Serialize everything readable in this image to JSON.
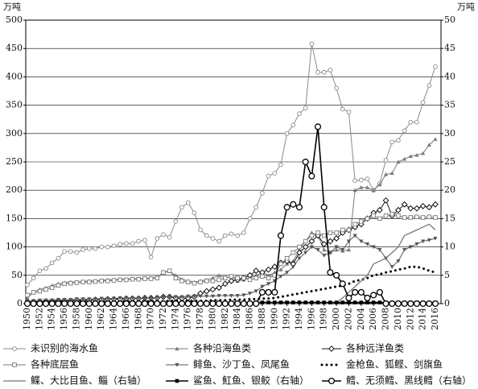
{
  "chart_data": {
    "type": "line",
    "y_unit": "万吨",
    "y2_unit": "万吨",
    "x": [
      1950,
      1951,
      1952,
      1953,
      1954,
      1955,
      1956,
      1957,
      1958,
      1959,
      1960,
      1961,
      1962,
      1963,
      1964,
      1965,
      1966,
      1967,
      1968,
      1969,
      1970,
      1971,
      1972,
      1973,
      1974,
      1975,
      1976,
      1977,
      1978,
      1979,
      1980,
      1981,
      1982,
      1983,
      1984,
      1985,
      1986,
      1987,
      1988,
      1989,
      1990,
      1991,
      1992,
      1993,
      1994,
      1995,
      1996,
      1997,
      1998,
      1999,
      2000,
      2001,
      2002,
      2003,
      2004,
      2005,
      2006,
      2007,
      2008,
      2009,
      2010,
      2011,
      2012,
      2013,
      2014,
      2015,
      2016
    ],
    "xlim": [
      1950,
      2016
    ],
    "xticks": [
      1950,
      1952,
      1954,
      1956,
      1958,
      1960,
      1962,
      1964,
      1966,
      1968,
      1970,
      1972,
      1974,
      1976,
      1978,
      1980,
      1982,
      1984,
      1986,
      1988,
      1990,
      1992,
      1994,
      1996,
      1998,
      2000,
      2002,
      2004,
      2006,
      2008,
      2010,
      2012,
      2014,
      2016
    ],
    "ylim": [
      0,
      500
    ],
    "yticks": [
      0,
      50,
      100,
      150,
      200,
      250,
      300,
      350,
      400,
      450,
      500
    ],
    "y2lim": [
      0,
      50
    ],
    "y2ticks": [
      0,
      5,
      10,
      15,
      20,
      25,
      30,
      35,
      40,
      45,
      50
    ],
    "grid": true,
    "series": [
      {
        "name": "未识别的海水鱼",
        "color": "#8a8a8a",
        "marker": "circle",
        "values": [
          33,
          45,
          58,
          62,
          72,
          80,
          92,
          92,
          90,
          95,
          97,
          97,
          100,
          100,
          102,
          105,
          106,
          106,
          110,
          112,
          82,
          115,
          122,
          117,
          145,
          170,
          178,
          160,
          130,
          120,
          115,
          110,
          120,
          123,
          120,
          125,
          150,
          170,
          195,
          225,
          230,
          245,
          300,
          315,
          335,
          345,
          458,
          408,
          408,
          412,
          380,
          343,
          338,
          217,
          218,
          220,
          200,
          212,
          253,
          285,
          288,
          305,
          320,
          320,
          355,
          385,
          418
        ]
      },
      {
        "name": "各种沿海鱼类",
        "color": "#7a7a7a",
        "marker": "triangle",
        "values": [
          10,
          20,
          25,
          28,
          32,
          35,
          37,
          38,
          38,
          39,
          40,
          40,
          41,
          42,
          42,
          43,
          43,
          44,
          44,
          45,
          45,
          47,
          55,
          57,
          50,
          43,
          40,
          38,
          40,
          42,
          45,
          50,
          45,
          48,
          40,
          42,
          45,
          50,
          55,
          50,
          55,
          60,
          70,
          75,
          95,
          110,
          125,
          120,
          95,
          90,
          95,
          93,
          95,
          200,
          205,
          205,
          200,
          210,
          228,
          230,
          250,
          255,
          260,
          262,
          265,
          280,
          290
        ]
      },
      {
        "name": "各种远洋鱼类",
        "color": "#111111",
        "marker": "diamond",
        "values": [
          2,
          3,
          3,
          4,
          4,
          5,
          5,
          5,
          6,
          6,
          6,
          7,
          7,
          8,
          8,
          8,
          9,
          9,
          9,
          10,
          10,
          10,
          12,
          12,
          10,
          9,
          10,
          12,
          18,
          22,
          25,
          28,
          35,
          40,
          42,
          45,
          50,
          58,
          55,
          60,
          65,
          72,
          75,
          70,
          90,
          100,
          110,
          120,
          105,
          110,
          115,
          125,
          130,
          135,
          140,
          150,
          160,
          165,
          182,
          155,
          165,
          175,
          168,
          168,
          172,
          170,
          175
        ]
      },
      {
        "name": "各种底层鱼",
        "color": "#777777",
        "marker": "square",
        "values": [
          15,
          20,
          22,
          25,
          28,
          32,
          35,
          36,
          37,
          38,
          38,
          39,
          40,
          40,
          41,
          42,
          42,
          43,
          43,
          44,
          44,
          45,
          55,
          58,
          45,
          40,
          38,
          36,
          38,
          40,
          40,
          42,
          45,
          48,
          45,
          45,
          42,
          45,
          48,
          45,
          50,
          70,
          80,
          90,
          100,
          110,
          120,
          125,
          120,
          125,
          125,
          130,
          130,
          140,
          145,
          150,
          155,
          150,
          155,
          158,
          155,
          152,
          152,
          153,
          152,
          153,
          152
        ]
      },
      {
        "name": "鲱鱼、沙丁鱼、凤尾鱼",
        "color": "#555555",
        "marker": "tridown",
        "values": [
          5,
          5,
          6,
          6,
          6,
          7,
          7,
          7,
          8,
          8,
          8,
          8,
          9,
          9,
          9,
          10,
          10,
          10,
          10,
          10,
          10,
          11,
          12,
          12,
          12,
          12,
          13,
          13,
          13,
          13,
          13,
          14,
          14,
          14,
          14,
          15,
          18,
          22,
          30,
          35,
          40,
          48,
          55,
          65,
          80,
          90,
          100,
          95,
          85,
          90,
          100,
          95,
          110,
          120,
          110,
          105,
          100,
          95,
          80,
          65,
          75,
          95,
          100,
          105,
          110,
          112,
          115
        ]
      },
      {
        "name": "金枪鱼、狐鲣、剑旗鱼",
        "color": "#000000",
        "marker": "dot",
        "values": [
          2,
          2,
          2,
          2,
          2,
          2,
          3,
          3,
          3,
          3,
          3,
          3,
          3,
          3,
          3,
          4,
          4,
          4,
          4,
          4,
          4,
          4,
          4,
          5,
          5,
          5,
          5,
          5,
          5,
          5,
          6,
          6,
          6,
          7,
          7,
          7,
          8,
          8,
          9,
          9,
          10,
          12,
          14,
          16,
          18,
          20,
          22,
          24,
          26,
          28,
          30,
          32,
          35,
          40,
          42,
          45,
          50,
          52,
          55,
          57,
          60,
          62,
          65,
          65,
          62,
          58,
          55
        ]
      },
      {
        "name": "鲽、大比目鱼、鲻（右轴）",
        "color": "#777777",
        "marker": "none",
        "axis": "y2",
        "values": [
          0,
          0,
          0,
          0,
          0,
          0,
          0,
          0,
          0,
          0,
          0,
          0,
          0,
          0,
          0,
          0,
          0,
          0,
          0,
          0,
          0,
          0,
          0,
          0,
          0,
          0,
          0,
          0,
          0,
          0,
          0,
          0,
          0,
          0,
          0,
          0,
          0,
          0,
          0,
          0,
          0,
          0,
          0,
          0,
          0,
          0,
          0,
          0,
          0,
          0,
          0.2,
          1,
          2,
          3,
          4,
          5,
          7,
          7.5,
          8,
          9,
          10,
          12,
          12.5,
          13,
          13.5,
          14,
          13
        ]
      },
      {
        "name": "鲨鱼、魟鱼、银鲛（右轴）",
        "color": "#000000",
        "marker": "squarefill",
        "axis": "y2",
        "values": [
          0.2,
          0.2,
          0.2,
          0.2,
          0.2,
          0.2,
          0.2,
          0.2,
          0.2,
          0.2,
          0.2,
          0.2,
          0.2,
          0.2,
          0.2,
          0.2,
          0.2,
          0.2,
          0.2,
          0.2,
          0.2,
          0.2,
          0.2,
          0.2,
          0.2,
          0.2,
          0.2,
          0.2,
          0.2,
          0.2,
          0.2,
          0.2,
          0.2,
          0.2,
          0.2,
          0.2,
          0.2,
          0.2,
          0.2,
          0.2,
          0.2,
          0.2,
          0.2,
          0.2,
          0.2,
          0.2,
          0.2,
          0.2,
          0.2,
          0.2,
          0.2,
          0.2,
          0.2,
          0.2,
          0.2,
          0.2,
          0.2,
          0.2,
          0.2,
          0.2,
          0.2,
          0.2,
          0.2,
          0.2,
          0.2,
          0.2,
          0.2
        ]
      },
      {
        "name": "鳕、无须鳕、黑线鳕（右轴）",
        "color": "#000000",
        "marker": "bigcircle",
        "axis": "y2",
        "values": [
          0,
          0,
          0,
          0,
          0,
          0,
          0,
          0,
          0,
          0,
          0,
          0,
          0,
          0,
          0,
          0,
          0,
          0,
          0,
          0,
          0,
          0,
          0,
          0,
          0,
          0,
          0,
          0,
          0,
          0,
          0,
          0,
          0,
          0,
          0,
          0,
          0,
          0,
          2,
          2,
          2,
          12,
          17,
          17.5,
          17,
          25,
          22.5,
          31.2,
          17,
          5.5,
          5,
          3.5,
          1,
          2,
          2,
          1,
          1.5,
          2,
          0,
          0,
          0,
          0,
          0,
          0,
          0,
          0,
          0
        ]
      }
    ]
  }
}
